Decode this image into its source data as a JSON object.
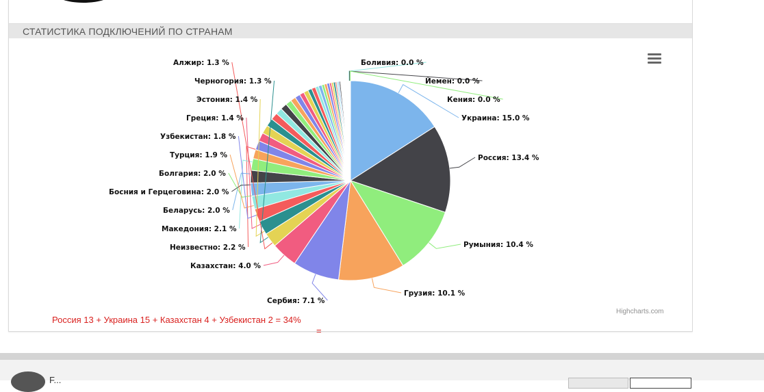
{
  "section": {
    "title": "СТАТИСТИКА ПОДКЛЮЧЕНИЙ ПО СТРАНАМ"
  },
  "chart_menu_icon": "hamburger-menu-icon",
  "credits": "Highcharts.com",
  "annotation": {
    "text": "Россия 13 + Украина 15 + Казахстан 4 + Узбекистан 2  = 34%",
    "text2": "="
  },
  "footer": {
    "text": "F..."
  },
  "chart_data": {
    "type": "pie",
    "unit": "%",
    "start_angle_deg": 0,
    "slices": [
      {
        "name": "Украина",
        "value": 15.0,
        "color": "#7cb5ec",
        "label": true
      },
      {
        "name": "Россия",
        "value": 13.4,
        "color": "#434348",
        "label": true
      },
      {
        "name": "Румыния",
        "value": 10.4,
        "color": "#90ed7d",
        "label": true
      },
      {
        "name": "Грузия",
        "value": 10.1,
        "color": "#f7a35c",
        "label": true
      },
      {
        "name": "Сербия",
        "value": 7.1,
        "color": "#8085e9",
        "label": true
      },
      {
        "name": "Казахстан",
        "value": 4.0,
        "color": "#f15c80",
        "label": true
      },
      {
        "name": "",
        "value": 2.2,
        "color": "#e4d354",
        "label": false
      },
      {
        "name": "",
        "value": 2.1,
        "color": "#2b908f",
        "label": false
      },
      {
        "name": "",
        "value": 2.0,
        "color": "#f45b5b",
        "label": false
      },
      {
        "name": "",
        "value": 2.0,
        "color": "#91e8e1",
        "label": false
      },
      {
        "name": "",
        "value": 2.0,
        "color": "#7cb5ec",
        "label": false
      },
      {
        "name": "",
        "value": 1.9,
        "color": "#434348",
        "label": false
      },
      {
        "name": "",
        "value": 1.8,
        "color": "#90ed7d",
        "label": false
      },
      {
        "name": "",
        "value": 1.4,
        "color": "#f7a35c",
        "label": false
      },
      {
        "name": "",
        "value": 1.4,
        "color": "#8085e9",
        "label": false
      },
      {
        "name": "",
        "value": 1.3,
        "color": "#f15c80",
        "label": false
      },
      {
        "name": "",
        "value": 1.3,
        "color": "#e4d354",
        "label": false
      },
      {
        "name": "",
        "value": 1.2,
        "color": "#2b908f",
        "label": false
      },
      {
        "name": "",
        "value": 1.1,
        "color": "#f45b5b",
        "label": false
      },
      {
        "name": "",
        "value": 1.0,
        "color": "#91e8e1",
        "label": false
      },
      {
        "name": "",
        "value": 1.0,
        "color": "#434348",
        "label": false
      },
      {
        "name": "",
        "value": 0.9,
        "color": "#90ed7d",
        "label": false
      },
      {
        "name": "",
        "value": 0.8,
        "color": "#f7a35c",
        "label": false
      },
      {
        "name": "",
        "value": 0.8,
        "color": "#8085e9",
        "label": false
      },
      {
        "name": "",
        "value": 0.7,
        "color": "#f15c80",
        "label": false
      },
      {
        "name": "",
        "value": 0.7,
        "color": "#e4d354",
        "label": false
      },
      {
        "name": "",
        "value": 0.6,
        "color": "#2b908f",
        "label": false
      },
      {
        "name": "",
        "value": 0.6,
        "color": "#f45b5b",
        "label": false
      },
      {
        "name": "",
        "value": 0.5,
        "color": "#91e8e1",
        "label": false
      },
      {
        "name": "",
        "value": 0.5,
        "color": "#7cb5ec",
        "label": false
      },
      {
        "name": "",
        "value": 0.4,
        "color": "#90ed7d",
        "label": false
      },
      {
        "name": "",
        "value": 0.4,
        "color": "#f7a35c",
        "label": false
      },
      {
        "name": "",
        "value": 0.4,
        "color": "#8085e9",
        "label": false
      },
      {
        "name": "",
        "value": 0.3,
        "color": "#f15c80",
        "label": false
      },
      {
        "name": "",
        "value": 0.3,
        "color": "#e4d354",
        "label": false
      },
      {
        "name": "",
        "value": 0.3,
        "color": "#2b908f",
        "label": false
      },
      {
        "name": "",
        "value": 0.2,
        "color": "#f45b5b",
        "label": false
      },
      {
        "name": "",
        "value": 0.2,
        "color": "#91e8e1",
        "label": false
      },
      {
        "name": "",
        "value": 0.2,
        "color": "#7cb5ec",
        "label": false
      },
      {
        "name": "",
        "value": 0.2,
        "color": "#434348",
        "label": false
      },
      {
        "name": "",
        "value": 0.1,
        "color": "#90ed7d",
        "label": false
      },
      {
        "name": "",
        "value": 0.1,
        "color": "#f7a35c",
        "label": false
      },
      {
        "name": "",
        "value": 0.1,
        "color": "#8085e9",
        "label": false
      },
      {
        "name": "",
        "value": 0.1,
        "color": "#f15c80",
        "label": false
      },
      {
        "name": "",
        "value": 0.1,
        "color": "#e4d354",
        "label": false
      },
      {
        "name": "",
        "value": 0.1,
        "color": "#2b908f",
        "label": false
      },
      {
        "name": "",
        "value": 0.1,
        "color": "#f45b5b",
        "label": false
      },
      {
        "name": "",
        "value": 0.1,
        "color": "#91e8e1",
        "label": false
      },
      {
        "name": "",
        "value": 0.1,
        "color": "#7cb5ec",
        "label": false
      },
      {
        "name": "",
        "value": 0.1,
        "color": "#434348",
        "label": false
      },
      {
        "name": "",
        "value": 0.05,
        "color": "#90ed7d",
        "label": false
      },
      {
        "name": "",
        "value": 0.05,
        "color": "#f7a35c",
        "label": false
      },
      {
        "name": "",
        "value": 0.05,
        "color": "#8085e9",
        "label": false
      },
      {
        "name": "",
        "value": 0.05,
        "color": "#f15c80",
        "label": false
      },
      {
        "name": "",
        "value": 0.05,
        "color": "#e4d354",
        "label": false
      },
      {
        "name": "",
        "value": 0.05,
        "color": "#2b908f",
        "label": false
      },
      {
        "name": "",
        "value": 0.05,
        "color": "#f45b5b",
        "label": false
      },
      {
        "name": "",
        "value": 0.05,
        "color": "#91e8e1",
        "label": false
      },
      {
        "name": "",
        "value": 0.05,
        "color": "#7cb5ec",
        "label": false
      },
      {
        "name": "",
        "value": 0.05,
        "color": "#434348",
        "label": false
      }
    ],
    "labels": [
      {
        "name": "Украина",
        "value": "15.0"
      },
      {
        "name": "Россия",
        "value": "13.4"
      },
      {
        "name": "Румыния",
        "value": "10.4"
      },
      {
        "name": "Грузия",
        "value": "10.1"
      },
      {
        "name": "Сербия",
        "value": "7.1"
      },
      {
        "name": "Казахстан",
        "value": "4.0"
      },
      {
        "name": "Неизвестно",
        "value": "2.2"
      },
      {
        "name": "Македония",
        "value": "2.1"
      },
      {
        "name": "Беларусь",
        "value": "2.0"
      },
      {
        "name": "Босния и Герцеговина",
        "value": "2.0"
      },
      {
        "name": "Болгария",
        "value": "2.0"
      },
      {
        "name": "Турция",
        "value": "1.9"
      },
      {
        "name": "Узбекистан",
        "value": "1.8"
      },
      {
        "name": "Греция",
        "value": "1.4"
      },
      {
        "name": "Эстония",
        "value": "1.4"
      },
      {
        "name": "Черногория",
        "value": "1.3"
      },
      {
        "name": "Алжир",
        "value": "1.3"
      },
      {
        "name": "Боливия",
        "value": "0.0"
      },
      {
        "name": "Йемен",
        "value": "0.0"
      },
      {
        "name": "Кения",
        "value": "0.0"
      }
    ]
  }
}
